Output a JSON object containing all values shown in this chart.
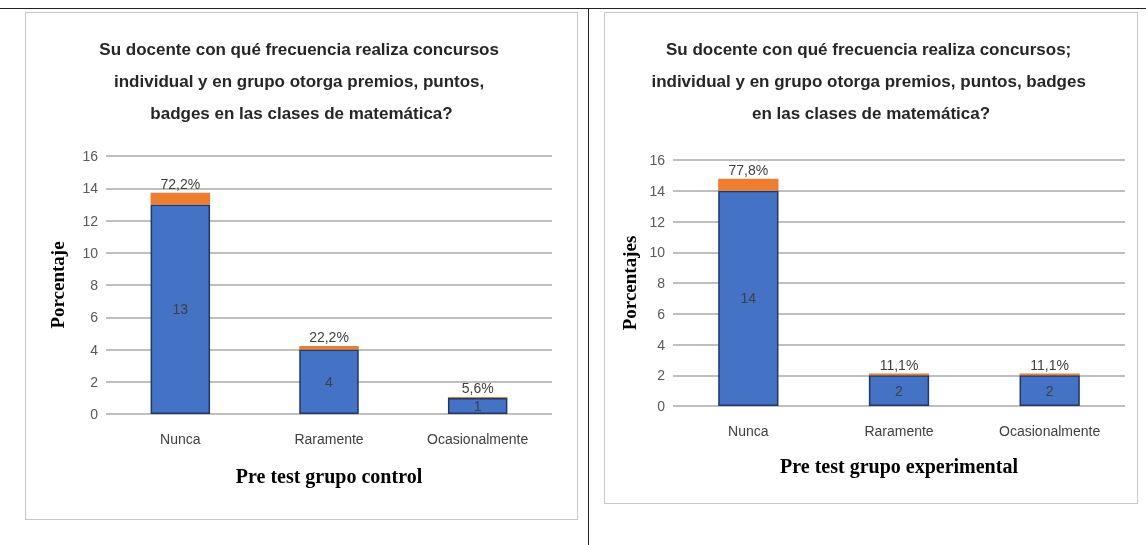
{
  "chart_data": [
    {
      "type": "bar",
      "title": "Su docente con qué frecuencia realiza concursos individual y en grupo otorga premios, puntos, badges en las clases de matemática?",
      "xlabel": "Pre test grupo control",
      "ylabel": "Porcentaje",
      "categories": [
        "Nunca",
        "Raramente",
        "Ocasionalmente"
      ],
      "stacked": true,
      "series": [
        {
          "color": "#4472c4",
          "values": [
            13,
            4,
            1
          ],
          "value_labels": [
            "13",
            "4",
            "1"
          ]
        },
        {
          "color": "#ed7d31",
          "values": [
            0.722,
            0.222,
            0.056
          ],
          "value_labels": [
            "72,2%",
            "22,2%",
            "5,6%"
          ]
        }
      ],
      "ylim": [
        0,
        16
      ],
      "yticks": [
        0,
        2,
        4,
        6,
        8,
        10,
        12,
        14,
        16
      ],
      "grid": "y"
    },
    {
      "type": "bar",
      "title": "Su docente con qué frecuencia realiza concursos; individual y en grupo otorga premios, puntos, badges en las clases de matemática?",
      "xlabel": "Pre test grupo experimental",
      "ylabel": "Porcentajes",
      "categories": [
        "Nunca",
        "Raramente",
        "Ocasionalmente"
      ],
      "stacked": true,
      "series": [
        {
          "color": "#4472c4",
          "values": [
            14,
            2,
            2
          ],
          "value_labels": [
            "14",
            "2",
            "2"
          ]
        },
        {
          "color": "#ed7d31",
          "values": [
            0.778,
            0.111,
            0.111
          ],
          "value_labels": [
            "77,8%",
            "11,1%",
            "11,1%"
          ]
        }
      ],
      "ylim": [
        0,
        16
      ],
      "yticks": [
        0,
        2,
        4,
        6,
        8,
        10,
        12,
        14,
        16
      ],
      "grid": "y"
    }
  ]
}
